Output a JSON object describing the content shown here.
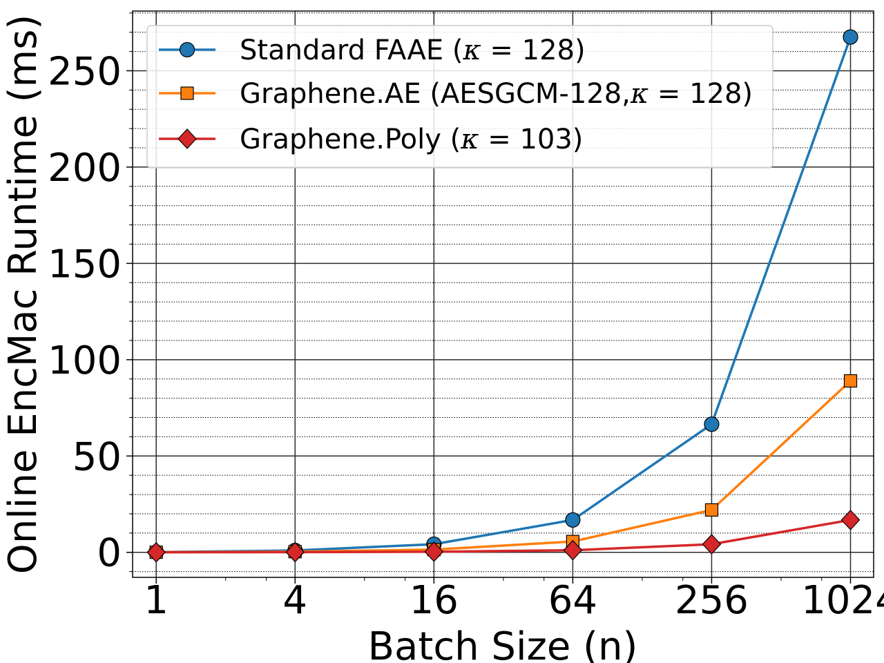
{
  "chart_data": {
    "type": "line",
    "title": "",
    "xlabel": "Batch Size (n)",
    "ylabel": "Online EncMac Runtime (ms)",
    "x_scale": "log2",
    "x": [
      1,
      4,
      16,
      64,
      256,
      1024
    ],
    "x_tick_labels": [
      "1",
      "4",
      "16",
      "64",
      "256",
      "1024"
    ],
    "xlim": [
      0.79,
      1290
    ],
    "ylim": [
      -13,
      281
    ],
    "y_ticks": [
      0,
      50,
      100,
      150,
      200,
      250
    ],
    "y_tick_labels": [
      "0",
      "50",
      "100",
      "150",
      "200",
      "250"
    ],
    "grid": "major and minor",
    "legend_position": "upper-left",
    "series": [
      {
        "name": "Standard FAAE (κ = 128)",
        "legend_prefix": "Standard FAAE (",
        "legend_kappa": "κ",
        "legend_suffix": " = 128)",
        "color": "#1f77b4",
        "marker": "circle",
        "values": [
          0.1,
          1.0,
          4.2,
          16.8,
          66.5,
          267.5
        ]
      },
      {
        "name": "Graphene.AE (AESGCM-128,κ = 128)",
        "legend_prefix": "Graphene.AE (AESGCM-128,",
        "legend_kappa": "κ",
        "legend_suffix": " = 128)",
        "color": "#ff7f0e",
        "marker": "square",
        "values": [
          0.05,
          0.35,
          1.4,
          5.6,
          22.0,
          89.0
        ]
      },
      {
        "name": "Graphene.Poly (κ = 103)",
        "legend_prefix": "Graphene.Poly (",
        "legend_kappa": "κ",
        "legend_suffix": " = 103)",
        "color": "#d62728",
        "marker": "diamond",
        "values": [
          0.02,
          0.1,
          0.3,
          1.1,
          4.2,
          16.8
        ]
      }
    ]
  }
}
